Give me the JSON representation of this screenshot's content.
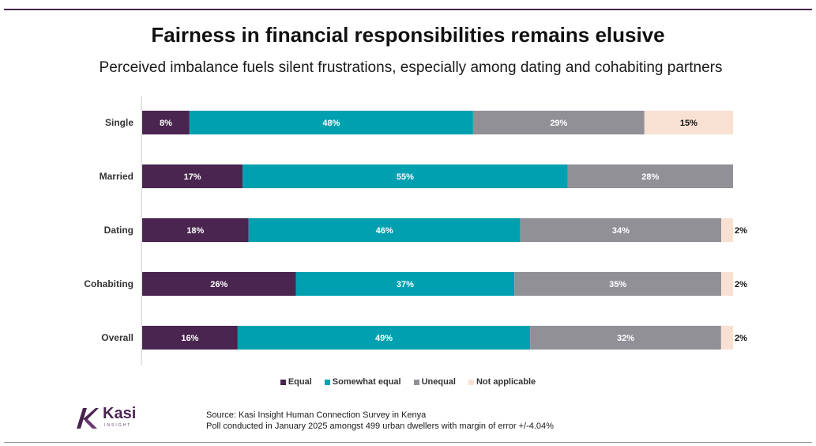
{
  "header": {
    "title": "Fairness in financial responsibilities remains elusive",
    "subtitle": "Perceived imbalance fuels silent frustrations, especially among dating and cohabiting partners"
  },
  "chart_data": {
    "type": "bar",
    "orientation": "horizontal",
    "stacked": true,
    "stacking": "percent",
    "categories": [
      "Single",
      "Married",
      "Dating",
      "Cohabiting",
      "Overall"
    ],
    "series": [
      {
        "name": "Equal",
        "color": "#4a2550",
        "values": [
          8,
          17,
          18,
          26,
          16
        ]
      },
      {
        "name": "Somewhat equal",
        "color": "#00a0b0",
        "values": [
          48,
          55,
          46,
          37,
          49
        ]
      },
      {
        "name": "Unequal",
        "color": "#919097",
        "values": [
          29,
          28,
          34,
          35,
          32
        ]
      },
      {
        "name": "Not applicable",
        "color": "#f8e1d3",
        "values": [
          15,
          0,
          2,
          2,
          2
        ]
      }
    ],
    "value_format": "{v}%",
    "legend_position": "bottom",
    "grid": false
  },
  "source": {
    "line1": "Source: Kasi Insight Human Connection Survey in Kenya",
    "line2": "Poll conducted  in January  2025 amongst 499 urban dwellers with margin of error +/-4.04%"
  },
  "logo": {
    "name": "Kasi",
    "sub": "INSIGHT",
    "color": "#4a2550"
  }
}
